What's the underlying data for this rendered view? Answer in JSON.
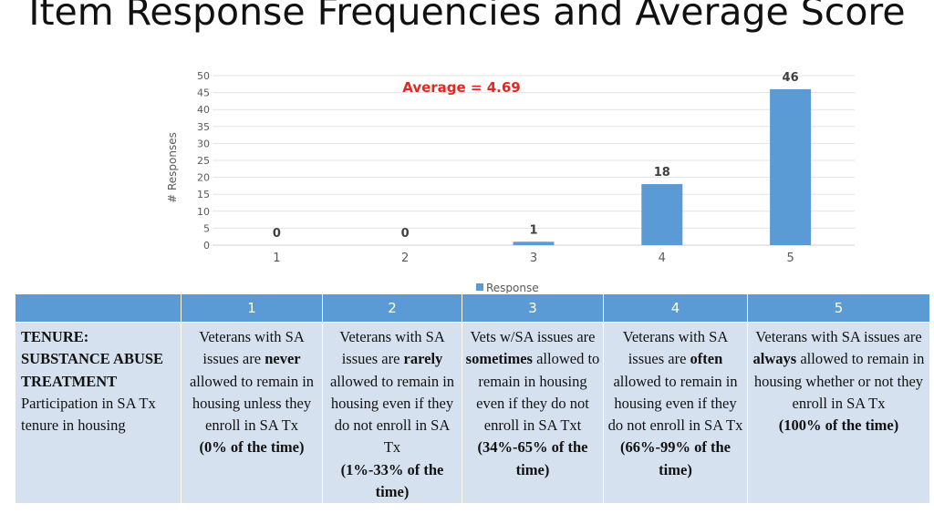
{
  "title": "Item Response Frequencies and Average Score",
  "chart_data": {
    "type": "bar",
    "categories": [
      "1",
      "2",
      "3",
      "4",
      "5"
    ],
    "values": [
      0,
      0,
      1,
      18,
      46
    ],
    "ylabel": "# Responses",
    "xlabel": "",
    "ylim": [
      0,
      50
    ],
    "yticks": [
      0,
      5,
      10,
      15,
      20,
      25,
      30,
      35,
      40,
      45,
      50
    ],
    "grid": true,
    "legend": {
      "entries": [
        "Response"
      ],
      "placement": "bottom"
    },
    "annotation": "Average = 4.69",
    "colors": {
      "bar": "#5b9bd5",
      "annotation": "#e8251f"
    }
  },
  "table": {
    "headers": [
      "",
      "1",
      "2",
      "3",
      "4",
      "5"
    ],
    "row_head": {
      "title_line1": "TENURE:",
      "title_line2": "SUBSTANCE ABUSE TREATMENT",
      "desc": "Participation in SA Tx tenure in housing"
    },
    "cells": [
      {
        "pre": "Veterans with SA issues are ",
        "key": "never",
        "post": " allowed to remain in housing unless they enroll in SA Tx",
        "pct": "(0% of the time)"
      },
      {
        "pre": "Veterans with SA issues are ",
        "key": "rarely",
        "post": " allowed to remain in housing even if they do not enroll in SA Tx",
        "pct": "(1%-33% of the time)"
      },
      {
        "pre": "Vets w/SA issues are ",
        "key": "sometimes",
        "post": " allowed to remain in housing even if they do not enroll in SA Txt",
        "pct": "(34%-65% of the time)"
      },
      {
        "pre": "Veterans with SA issues are ",
        "key": "often",
        "post": " allowed to remain in housing even if they do not enroll in SA Tx",
        "pct": "(66%-99% of the time)"
      },
      {
        "pre": "Veterans with SA issues are ",
        "key": "always",
        "post": " allowed to remain in housing whether or not they enroll in SA Tx",
        "pct": "(100% of the time)"
      }
    ]
  }
}
